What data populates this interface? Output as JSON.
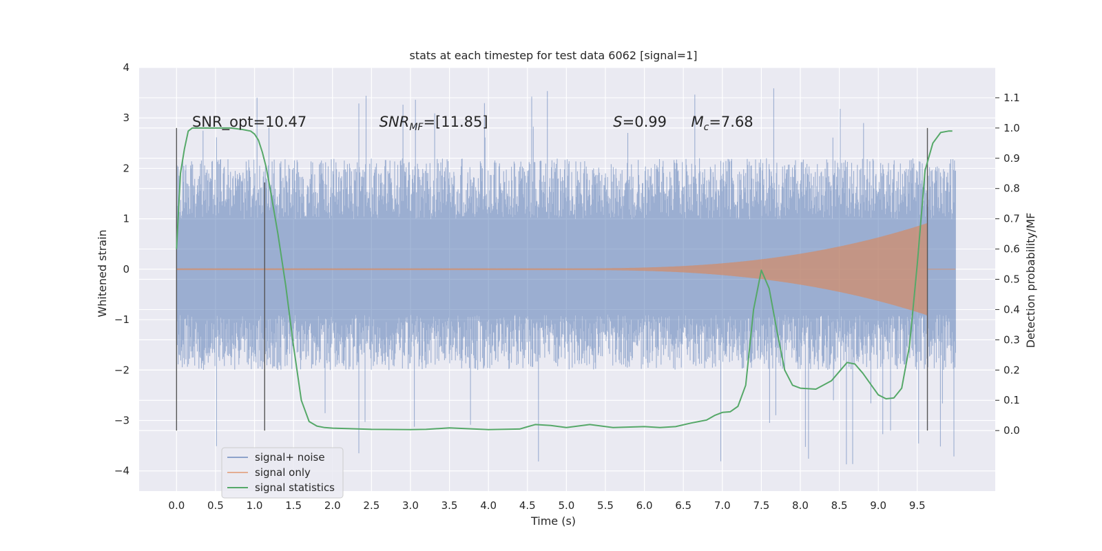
{
  "chart_data": {
    "type": "line",
    "title": "stats at each timestep for test data 6062 [signal=1]",
    "xlabel": "Time (s)",
    "ylabel": "Whitened strain",
    "y2label": "Detection probability/MF",
    "xlim": [
      -0.48,
      10.5
    ],
    "ylim": [
      -4.4,
      4.0
    ],
    "y2lim": [
      -0.2,
      1.2
    ],
    "x_ticks": [
      0.0,
      0.5,
      1.0,
      1.5,
      2.0,
      2.5,
      3.0,
      3.5,
      4.0,
      4.5,
      5.0,
      5.5,
      6.0,
      6.5,
      7.0,
      7.5,
      8.0,
      8.5,
      9.0,
      9.5
    ],
    "x_tick_labels": [
      "0.0",
      "0.5",
      "1.0",
      "1.5",
      "2.0",
      "2.5",
      "3.0",
      "3.5",
      "4.0",
      "4.5",
      "5.0",
      "5.5",
      "6.0",
      "6.5",
      "7.0",
      "7.5",
      "8.0",
      "8.5",
      "9.0",
      "9.5"
    ],
    "y_ticks": [
      -4,
      -3,
      -2,
      -1,
      0,
      1,
      2,
      3,
      4
    ],
    "y_tick_labels": [
      "−4",
      "−3",
      "−2",
      "−1",
      "0",
      "1",
      "2",
      "3",
      "4"
    ],
    "y2_ticks": [
      0.0,
      0.1,
      0.2,
      0.3,
      0.4,
      0.5,
      0.6,
      0.7,
      0.8,
      0.9,
      1.0,
      1.1
    ],
    "y2_tick_labels": [
      "0.0",
      "0.1",
      "0.2",
      "0.3",
      "0.4",
      "0.5",
      "0.6",
      "0.7",
      "0.8",
      "0.9",
      "1.0",
      "1.1"
    ],
    "grid": true,
    "legend_position": "lower-left",
    "colors": {
      "background": "#eaeaf2",
      "grid": "#ffffff",
      "signal_noise": "#4c72b0",
      "signal_only": "#dd8452",
      "statistics": "#55a868",
      "vline": "#555555"
    },
    "annotations": [
      {
        "text": "SNR_opt=10.47",
        "x": 0.2,
        "y": 1.0
      },
      {
        "text": "SNR",
        "sub": "MF",
        "rest": "=[11.85]",
        "x": 2.6,
        "y": 1.0
      },
      {
        "text": "S",
        "rest": "=0.99",
        "x": 5.6,
        "y": 1.0
      },
      {
        "text": "M",
        "sub": "c",
        "rest": "=7.68",
        "x": 6.6,
        "y": 1.0
      }
    ],
    "vertical_lines": [
      {
        "x": 0.0,
        "y2_top": 1.0,
        "y2_bottom": 0.0
      },
      {
        "x": 1.13,
        "y2_top": 0.82,
        "y2_bottom": 0.0
      },
      {
        "x": 9.63,
        "y2_top": 1.0,
        "y2_bottom": 0.0
      }
    ],
    "series": [
      {
        "name": "signal+ noise",
        "axis": "left",
        "style": "noise",
        "x_range": [
          0.0,
          9.99
        ],
        "envelope": [
          2.2,
          -2.0
        ],
        "extremes": [
          3.6,
          -3.9
        ]
      },
      {
        "name": "signal only",
        "axis": "left",
        "style": "chirp",
        "x_range": [
          0.0,
          9.63
        ],
        "chirp_start": 5.0,
        "peak_amplitude": 0.9
      },
      {
        "name": "signal statistics",
        "axis": "right",
        "style": "line",
        "x": [
          0.0,
          0.05,
          0.1,
          0.15,
          0.2,
          0.3,
          0.5,
          0.7,
          0.85,
          0.95,
          1.0,
          1.05,
          1.1,
          1.15,
          1.2,
          1.3,
          1.4,
          1.5,
          1.6,
          1.7,
          1.8,
          1.9,
          2.0,
          2.5,
          3.0,
          3.2,
          3.5,
          4.0,
          4.4,
          4.6,
          4.8,
          5.0,
          5.3,
          5.6,
          6.0,
          6.2,
          6.4,
          6.6,
          6.8,
          6.9,
          7.0,
          7.1,
          7.2,
          7.3,
          7.4,
          7.5,
          7.6,
          7.7,
          7.8,
          7.9,
          8.0,
          8.2,
          8.4,
          8.6,
          8.7,
          8.8,
          9.0,
          9.1,
          9.2,
          9.3,
          9.4,
          9.5,
          9.6,
          9.7,
          9.8,
          9.9,
          9.95
        ],
        "y": [
          0.6,
          0.85,
          0.93,
          0.99,
          1.0,
          1.0,
          1.0,
          1.0,
          0.995,
          0.99,
          0.98,
          0.96,
          0.92,
          0.87,
          0.8,
          0.65,
          0.48,
          0.28,
          0.1,
          0.03,
          0.015,
          0.01,
          0.008,
          0.004,
          0.003,
          0.004,
          0.009,
          0.003,
          0.005,
          0.02,
          0.017,
          0.01,
          0.02,
          0.01,
          0.013,
          0.01,
          0.013,
          0.025,
          0.035,
          0.05,
          0.06,
          0.062,
          0.08,
          0.15,
          0.4,
          0.53,
          0.47,
          0.33,
          0.2,
          0.15,
          0.14,
          0.137,
          0.165,
          0.225,
          0.22,
          0.19,
          0.118,
          0.105,
          0.108,
          0.14,
          0.28,
          0.55,
          0.86,
          0.95,
          0.985,
          0.99,
          0.99
        ]
      }
    ]
  }
}
